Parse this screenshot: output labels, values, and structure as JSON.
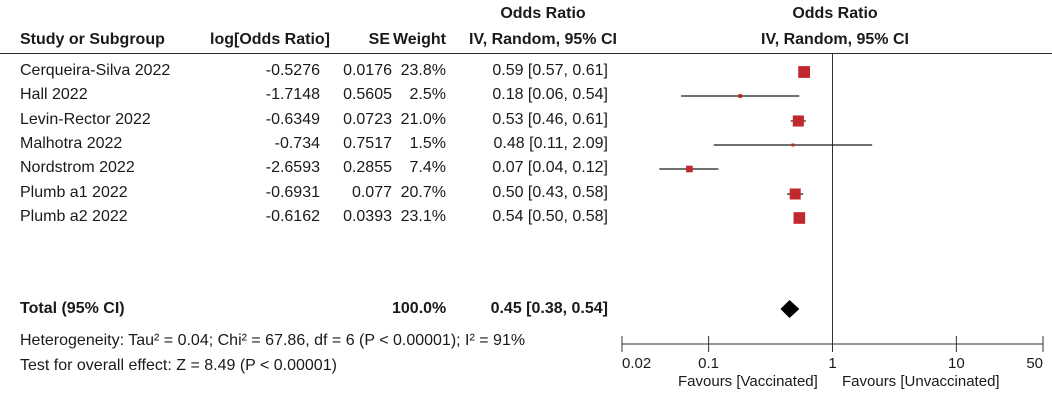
{
  "table": {
    "group_header_or": "Odds Ratio",
    "group_header_plot": "Odds Ratio",
    "col_study": "Study or Subgroup",
    "col_logor": "log[Odds Ratio]",
    "col_se": "SE",
    "col_weight": "Weight",
    "col_or": "IV, Random, 95% CI",
    "col_plot": "IV, Random, 95% CI"
  },
  "chart_data": {
    "type": "forest",
    "x_scale": "log",
    "xlim": [
      0.02,
      50
    ],
    "x_ticks": [
      0.02,
      0.1,
      1,
      10,
      50
    ],
    "x_tick_labels": [
      "0.02",
      "0.1",
      "1",
      "10",
      "50"
    ],
    "null_line": 1,
    "marker_color": "#c0282d",
    "studies": [
      {
        "study": "Cerqueira-Silva 2022",
        "logor": "-0.5276",
        "se": "0.0176",
        "weight": "23.8%",
        "or_text": "0.59 [0.57, 0.61]",
        "or": 0.59,
        "lo": 0.57,
        "hi": 0.61,
        "w": 23.8
      },
      {
        "study": "Hall 2022",
        "logor": "-1.7148",
        "se": "0.5605",
        "weight": "2.5%",
        "or_text": "0.18 [0.06, 0.54]",
        "or": 0.18,
        "lo": 0.06,
        "hi": 0.54,
        "w": 2.5
      },
      {
        "study": "Levin-Rector 2022",
        "logor": "-0.6349",
        "se": "0.0723",
        "weight": "21.0%",
        "or_text": "0.53 [0.46, 0.61]",
        "or": 0.53,
        "lo": 0.46,
        "hi": 0.61,
        "w": 21.0
      },
      {
        "study": "Malhotra 2022",
        "logor": "-0.734",
        "se": "0.7517",
        "weight": "1.5%",
        "or_text": "0.48 [0.11, 2.09]",
        "or": 0.48,
        "lo": 0.11,
        "hi": 2.09,
        "w": 1.5
      },
      {
        "study": "Nordstrom 2022",
        "logor": "-2.6593",
        "se": "0.2855",
        "weight": "7.4%",
        "or_text": "0.07 [0.04, 0.12]",
        "or": 0.07,
        "lo": 0.04,
        "hi": 0.12,
        "w": 7.4
      },
      {
        "study": "Plumb a1 2022",
        "logor": "-0.6931",
        "se": "0.077",
        "weight": "20.7%",
        "or_text": "0.50 [0.43, 0.58]",
        "or": 0.5,
        "lo": 0.43,
        "hi": 0.58,
        "w": 20.7
      },
      {
        "study": "Plumb a2 2022",
        "logor": "-0.6162",
        "se": "0.0393",
        "weight": "23.1%",
        "or_text": "0.54 [0.50, 0.58]",
        "or": 0.54,
        "lo": 0.5,
        "hi": 0.58,
        "w": 23.1
      }
    ],
    "total": {
      "label": "Total (95% CI)",
      "weight": "100.0%",
      "or_text": "0.45 [0.38, 0.54]",
      "or": 0.45,
      "lo": 0.38,
      "hi": 0.54
    },
    "heterogeneity": "Heterogeneity: Tau² = 0.04; Chi² = 67.86, df = 6 (P < 0.00001); I² = 91%",
    "overall_effect": "Test for overall effect: Z = 8.49 (P < 0.00001)",
    "favours_left": "Favours [Vaccinated]",
    "favours_right": "Favours [Unvaccinated]"
  }
}
